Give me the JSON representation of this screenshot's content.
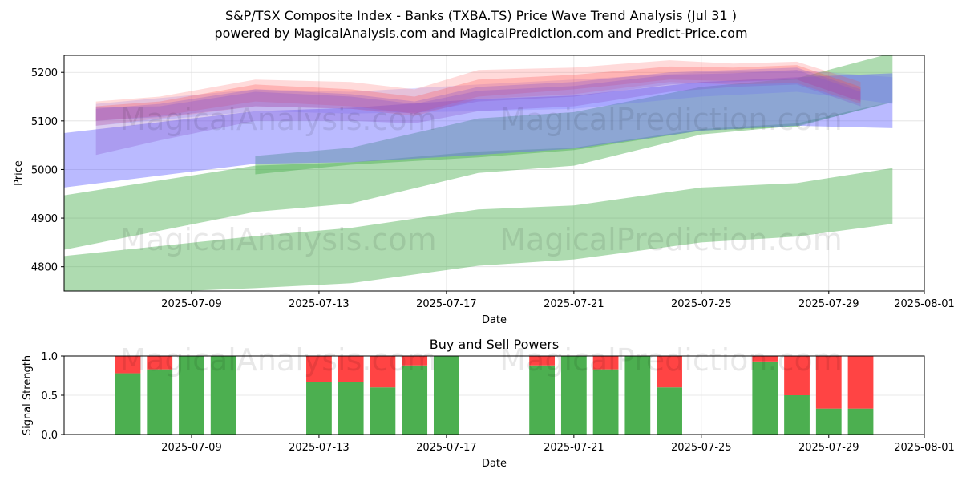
{
  "title_line1": "S&P/TSX Composite Index - Banks (TXBA.TS) Price Wave Trend Analysis (Jul 31 )",
  "title_line2": "powered by MagicalAnalysis.com and MagicalPrediction.com and Predict-Price.com",
  "watermarks": [
    "MagicalAnalysis.com",
    "MagicalPrediction.com"
  ],
  "colors": {
    "green": "#4caf50",
    "red": "#ff4444",
    "blue": "#6666ff",
    "grid": "#e0e0e0"
  },
  "chart_data": [
    {
      "type": "area",
      "title": "",
      "xlabel": "Date",
      "ylabel": "Price",
      "xlim": [
        "2025-07-05",
        "2025-08-01"
      ],
      "ylim": [
        4750,
        5235
      ],
      "x_ticks": [
        "2025-07-09",
        "2025-07-13",
        "2025-07-17",
        "2025-07-21",
        "2025-07-25",
        "2025-07-29",
        "2025-08-01"
      ],
      "y_ticks": [
        4800,
        4900,
        5000,
        5100,
        5200
      ],
      "grid": true,
      "bands": [
        {
          "color": "green",
          "opacity": 0.45,
          "x": [
            "2025-07-05",
            "2025-07-11",
            "2025-07-14",
            "2025-07-18",
            "2025-07-21",
            "2025-07-25",
            "2025-07-28",
            "2025-07-31"
          ],
          "upper": [
            4822,
            4863,
            4880,
            4918,
            4926,
            4963,
            4972,
            5003
          ],
          "lower": [
            4740,
            4756,
            4766,
            4802,
            4815,
            4850,
            4862,
            4888
          ]
        },
        {
          "color": "green",
          "opacity": 0.45,
          "x": [
            "2025-07-05",
            "2025-07-11",
            "2025-07-14",
            "2025-07-18",
            "2025-07-21",
            "2025-07-25",
            "2025-07-28",
            "2025-07-31"
          ],
          "upper": [
            4947,
            5008,
            5015,
            5037,
            5045,
            5083,
            5095,
            5140
          ],
          "lower": [
            4835,
            4913,
            4930,
            4993,
            5008,
            5072,
            5090,
            5138
          ]
        },
        {
          "color": "green",
          "opacity": 0.45,
          "x": [
            "2025-07-11",
            "2025-07-14",
            "2025-07-18",
            "2025-07-21",
            "2025-07-25",
            "2025-07-28",
            "2025-07-31"
          ],
          "upper": [
            5028,
            5045,
            5105,
            5118,
            5170,
            5188,
            5240
          ],
          "lower": [
            4990,
            5010,
            5025,
            5040,
            5080,
            5088,
            5140
          ]
        },
        {
          "color": "blue",
          "opacity": 0.45,
          "x": [
            "2025-07-05",
            "2025-07-11",
            "2025-07-14",
            "2025-07-18",
            "2025-07-21",
            "2025-07-25",
            "2025-07-28",
            "2025-07-31"
          ],
          "upper": [
            5075,
            5120,
            5127,
            5145,
            5152,
            5180,
            5190,
            5198
          ],
          "lower": [
            4963,
            5012,
            5015,
            5030,
            5043,
            5080,
            5090,
            5085
          ]
        },
        {
          "color": "blue",
          "opacity": 0.2,
          "x": [
            "2025-07-06",
            "2025-07-11",
            "2025-07-14",
            "2025-07-18",
            "2025-07-21",
            "2025-07-25",
            "2025-07-28",
            "2025-07-31"
          ],
          "upper": [
            5135,
            5165,
            5160,
            5175,
            5185,
            5200,
            5205,
            5190
          ],
          "lower": [
            5090,
            5120,
            5115,
            5120,
            5125,
            5150,
            5160,
            5135
          ]
        },
        {
          "color": "red",
          "opacity": 0.2,
          "x": [
            "2025-07-06",
            "2025-07-08",
            "2025-07-11",
            "2025-07-14",
            "2025-07-16",
            "2025-07-18",
            "2025-07-21",
            "2025-07-24",
            "2025-07-26",
            "2025-07-28",
            "2025-07-30"
          ],
          "upper": [
            5140,
            5150,
            5185,
            5180,
            5165,
            5205,
            5210,
            5225,
            5218,
            5222,
            5180
          ],
          "lower": [
            5090,
            5105,
            5130,
            5125,
            5110,
            5145,
            5155,
            5180,
            5175,
            5178,
            5135
          ]
        },
        {
          "color": "red",
          "opacity": 0.25,
          "x": [
            "2025-07-06",
            "2025-07-08",
            "2025-07-11",
            "2025-07-14",
            "2025-07-16",
            "2025-07-18",
            "2025-07-21",
            "2025-07-24",
            "2025-07-26",
            "2025-07-28",
            "2025-07-30"
          ],
          "upper": [
            5130,
            5140,
            5175,
            5165,
            5150,
            5185,
            5195,
            5212,
            5210,
            5215,
            5170
          ],
          "lower": [
            5100,
            5110,
            5140,
            5130,
            5115,
            5150,
            5165,
            5185,
            5182,
            5185,
            5140
          ]
        },
        {
          "color": "purple",
          "opacity": 0.3,
          "x": [
            "2025-07-06",
            "2025-07-08",
            "2025-07-11",
            "2025-07-14",
            "2025-07-16",
            "2025-07-18",
            "2025-07-21",
            "2025-07-24",
            "2025-07-26",
            "2025-07-28",
            "2025-07-30"
          ],
          "upper": [
            5125,
            5135,
            5165,
            5155,
            5140,
            5170,
            5180,
            5200,
            5205,
            5210,
            5165
          ],
          "lower": [
            5030,
            5060,
            5100,
            5100,
            5095,
            5120,
            5130,
            5160,
            5170,
            5175,
            5130
          ]
        },
        {
          "color": "purple",
          "opacity": 0.3,
          "x": [
            "2025-07-06",
            "2025-07-08",
            "2025-07-11",
            "2025-07-14",
            "2025-07-16",
            "2025-07-18",
            "2025-07-21",
            "2025-07-24",
            "2025-07-26",
            "2025-07-28",
            "2025-07-30"
          ],
          "upper": [
            5128,
            5130,
            5160,
            5150,
            5135,
            5162,
            5172,
            5195,
            5198,
            5205,
            5160
          ],
          "lower": [
            5100,
            5108,
            5130,
            5125,
            5115,
            5140,
            5150,
            5175,
            5180,
            5185,
            5140
          ]
        }
      ]
    },
    {
      "type": "bar",
      "title": "Buy and Sell Powers",
      "xlabel": "Date",
      "ylabel": "Signal Strength",
      "xlim": [
        "2025-07-05",
        "2025-08-01"
      ],
      "ylim": [
        0,
        1
      ],
      "x_ticks": [
        "2025-07-09",
        "2025-07-13",
        "2025-07-17",
        "2025-07-21",
        "2025-07-25",
        "2025-07-29",
        "2025-08-01"
      ],
      "y_ticks": [
        "0.0",
        "0.5",
        "1.0"
      ],
      "grid": true,
      "dates": [
        "2025-07-07",
        "2025-07-08",
        "2025-07-09",
        "2025-07-10",
        "2025-07-13",
        "2025-07-14",
        "2025-07-15",
        "2025-07-16",
        "2025-07-17",
        "2025-07-20",
        "2025-07-21",
        "2025-07-22",
        "2025-07-23",
        "2025-07-24",
        "2025-07-27",
        "2025-07-28",
        "2025-07-29",
        "2025-07-30"
      ],
      "buy": [
        0.78,
        0.83,
        1.0,
        1.0,
        0.67,
        0.67,
        0.6,
        0.88,
        1.0,
        0.88,
        1.0,
        0.83,
        1.0,
        0.6,
        0.93,
        0.5,
        0.33,
        0.33
      ],
      "sell": [
        0.22,
        0.17,
        0.0,
        0.0,
        0.33,
        0.33,
        0.4,
        0.12,
        0.0,
        0.12,
        0.0,
        0.17,
        0.0,
        0.4,
        0.07,
        0.5,
        0.67,
        0.67
      ]
    }
  ]
}
